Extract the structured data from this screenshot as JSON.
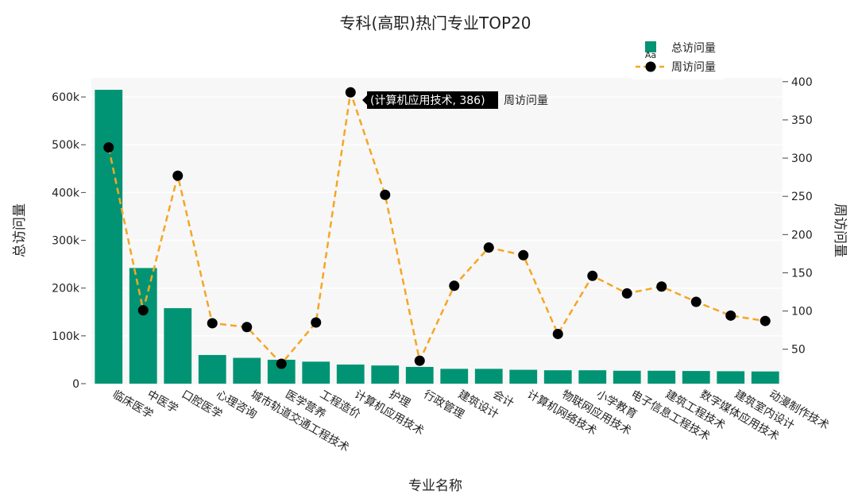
{
  "chart_data": {
    "type": "bar+line",
    "title": "专科(高职)热门专业TOP20",
    "xlabel": "专业名称",
    "ylabel_left": "总访问量",
    "ylabel_right": "周访问量",
    "categories": [
      "临床医学",
      "中医学",
      "口腔医学",
      "心理咨询",
      "城市轨道交通工程技术",
      "医学营养",
      "工程造价",
      "计算机应用技术",
      "护理",
      "行政管理",
      "建筑设计",
      "会计",
      "计算机网络技术",
      "物联网应用技术",
      "小学教育",
      "电子信息工程技术",
      "建筑工程技术",
      "数字媒体应用技术",
      "建筑室内设计",
      "动漫制作技术"
    ],
    "series": [
      {
        "name": "总访问量",
        "type": "bar",
        "axis": "left",
        "color": "#009474",
        "values": [
          615000,
          242000,
          158000,
          60000,
          54000,
          50000,
          46000,
          40000,
          38000,
          35000,
          31000,
          31000,
          29000,
          28000,
          28000,
          27000,
          27000,
          26500,
          26000,
          25500
        ]
      },
      {
        "name": "周访问量",
        "type": "line",
        "axis": "right",
        "color": "#F5A623",
        "marker_color": "#000000",
        "values": [
          314,
          101,
          277,
          84,
          79,
          31,
          85,
          386,
          252,
          35,
          133,
          183,
          173,
          70,
          146,
          123,
          132,
          112,
          94,
          87
        ]
      }
    ],
    "ylim_left": [
      0,
      640000
    ],
    "ylim_right": [
      5,
      405
    ],
    "yticks_left": [
      "0",
      "100k",
      "200k",
      "300k",
      "400k",
      "500k",
      "600k"
    ],
    "yticks_right": [
      "50",
      "100",
      "150",
      "200",
      "250",
      "300",
      "350",
      "400"
    ],
    "grid": true,
    "legend": "top-right",
    "legend_extra_glyph": "Aa",
    "tooltip": {
      "label": "(计算机应用技术, 386)",
      "series": "周访问量"
    }
  }
}
